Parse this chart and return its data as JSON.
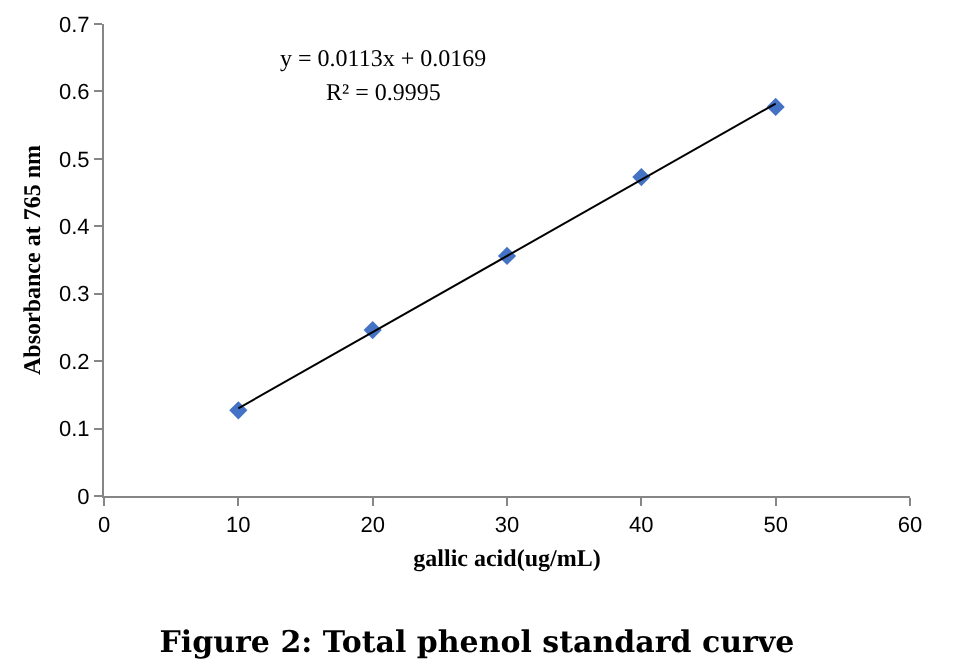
{
  "chart_data": {
    "type": "scatter",
    "title": "Figure 2: Total phenol standard curve",
    "xlabel": "gallic acid(ug/mL)",
    "ylabel": "Absorbance at 765 nm",
    "x": [
      10,
      20,
      30,
      40,
      50
    ],
    "series": [
      {
        "color": "#4472c4",
        "marker": "diamond",
        "values": [
          0.127,
          0.246,
          0.356,
          0.473,
          0.577
        ]
      },
      {
        "type": "line",
        "color": "#000000",
        "x": [
          10,
          50
        ],
        "values": [
          0.13,
          0.582
        ]
      }
    ],
    "annotations": [
      "y = 0.0113x + 0.0169",
      "R² = 0.9995"
    ],
    "xlim": [
      0,
      60
    ],
    "xticks": [
      0,
      10,
      20,
      30,
      40,
      50,
      60
    ],
    "ylim": [
      0,
      0.7
    ],
    "yticks": [
      0,
      0.1,
      0.2,
      0.3,
      0.4,
      0.5,
      0.6,
      0.7
    ],
    "grid": false
  }
}
